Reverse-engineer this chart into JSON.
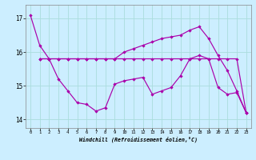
{
  "bg_color": "#cceeff",
  "grid_color": "#aadddd",
  "line_color": "#aa00aa",
  "ylim": [
    13.75,
    17.4
  ],
  "xlim": [
    -0.5,
    23.5
  ],
  "yticks": [
    14,
    15,
    16,
    17
  ],
  "xticks": [
    0,
    1,
    2,
    3,
    4,
    5,
    6,
    7,
    8,
    9,
    10,
    11,
    12,
    13,
    14,
    15,
    16,
    17,
    18,
    19,
    20,
    21,
    22,
    23
  ],
  "xlabel": "Windchill (Refroidissement éolien,°C)",
  "line1_x": [
    0,
    1,
    2,
    3,
    4,
    5,
    6,
    7,
    8,
    9,
    10,
    11,
    12,
    13,
    14,
    15,
    16,
    17,
    18,
    19,
    20,
    21,
    22,
    23
  ],
  "line1_y": [
    17.1,
    16.2,
    15.8,
    15.2,
    14.85,
    14.5,
    14.45,
    14.25,
    14.35,
    15.05,
    15.15,
    15.2,
    15.25,
    14.75,
    14.85,
    14.95,
    15.3,
    15.8,
    15.9,
    15.8,
    14.95,
    14.75,
    14.8,
    14.2
  ],
  "line2_x": [
    1,
    2,
    3,
    4,
    5,
    6,
    7,
    8,
    9,
    10,
    11,
    12,
    13,
    14,
    15,
    16,
    17,
    18,
    19,
    20,
    21,
    22,
    23
  ],
  "line2_y": [
    15.8,
    15.8,
    15.8,
    15.8,
    15.8,
    15.8,
    15.8,
    15.8,
    15.8,
    15.8,
    15.8,
    15.8,
    15.8,
    15.8,
    15.8,
    15.8,
    15.8,
    15.8,
    15.8,
    15.8,
    15.8,
    15.8,
    14.2
  ],
  "line3_x": [
    1,
    2,
    3,
    4,
    5,
    6,
    7,
    8,
    9,
    10,
    11,
    12,
    13,
    14,
    15,
    16,
    17,
    18,
    19,
    20,
    21,
    22,
    23
  ],
  "line3_y": [
    15.8,
    15.8,
    15.8,
    15.8,
    15.8,
    15.8,
    15.8,
    15.8,
    15.8,
    16.0,
    16.1,
    16.2,
    16.3,
    16.4,
    16.45,
    16.5,
    16.65,
    16.75,
    16.4,
    15.9,
    15.45,
    14.85,
    14.2
  ]
}
